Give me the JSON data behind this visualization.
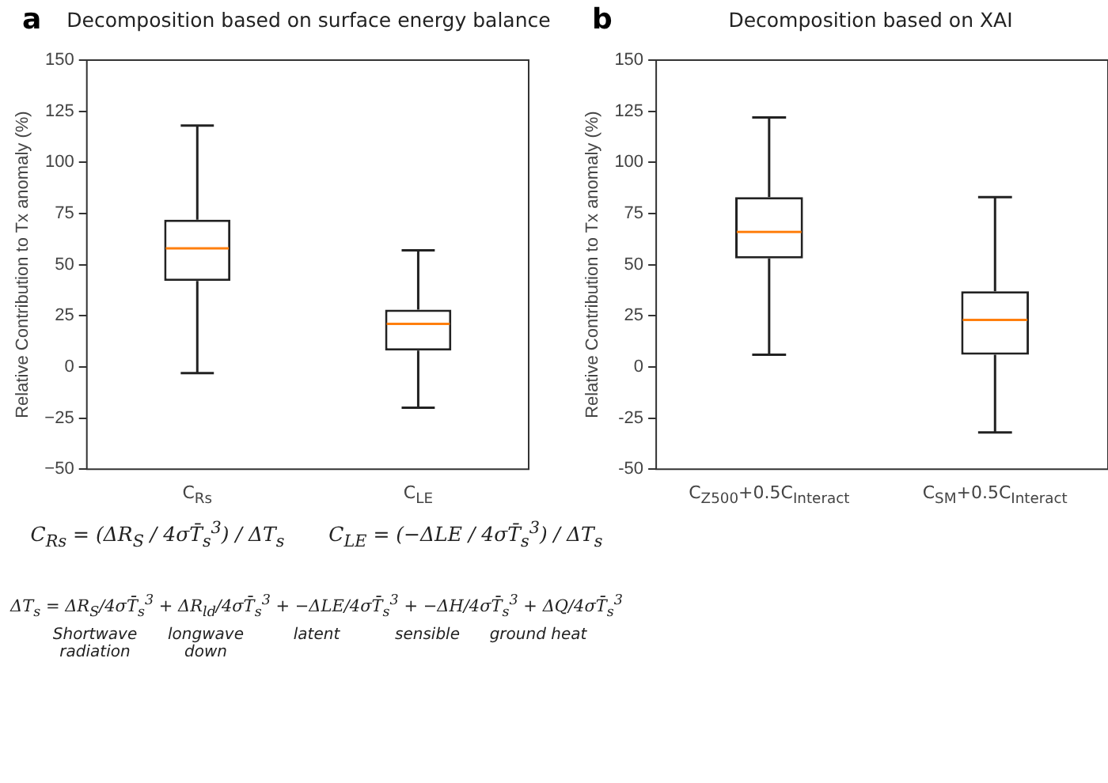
{
  "chart_data": [
    {
      "type": "box",
      "title": "Decomposition based on surface energy balance",
      "ylabel": "Relative Contribution to Tx anomaly (%)",
      "categories": [
        "C$_{Rs}$",
        "C$_{LE}$"
      ],
      "boxes": [
        {
          "low": -3,
          "q1": 42,
          "median": 58,
          "q3": 72,
          "high": 118
        },
        {
          "low": -20,
          "q1": 8,
          "median": 21,
          "q3": 28,
          "high": 57
        }
      ],
      "ylim": [
        -50,
        150
      ],
      "yticks": [
        {
          "value": -50,
          "label": "−50"
        },
        {
          "value": -25,
          "label": "−25"
        },
        0,
        25,
        50,
        75,
        100,
        125,
        150
      ],
      "grid": false,
      "legend": false,
      "annotations": [
        "a",
        "C$_{Rs}$ = (ΔR$_{S}$ / 4σT̄$_{s}$$^{3}$) / ΔT$_{s}$",
        "C$_{LE}$ = (−ΔLE / 4σT̄$_{s}$$^{3}$) / ΔT$_{s}$",
        "ΔT$_{s}$ = ΔR$_{S}$/4σT̄$_{s}$$^{3}$ + ΔR$_{ld}$/4σT̄$_{s}$$^{3}$ + −ΔLE/4σT̄$_{s}$$^{3}$ + −ΔH/4σT̄$_{s}$$^{3}$ + ΔQ/4σT̄$_{s}$$^{3}$",
        "Shortwave radiation",
        "longwave down",
        "latent",
        "sensible",
        "ground heat"
      ]
    },
    {
      "type": "box",
      "title": "Decomposition based on XAI",
      "ylabel": "Relative Contribution to Tx anomaly (%)",
      "categories": [
        "C$_{Z500}$+0.5C$_{Interact}$",
        "C$_{SM}$+0.5C$_{Interact}$"
      ],
      "boxes": [
        {
          "low": 6,
          "q1": 53,
          "median": 66,
          "q3": 83,
          "high": 122
        },
        {
          "low": -32,
          "q1": 6,
          "median": 23,
          "q3": 37,
          "high": 83
        }
      ],
      "ylim": [
        -50,
        150
      ],
      "yticks": [
        -50,
        -25,
        0,
        25,
        50,
        75,
        100,
        125,
        150
      ],
      "grid": false,
      "legend": false,
      "annotations": [
        "b"
      ]
    }
  ]
}
